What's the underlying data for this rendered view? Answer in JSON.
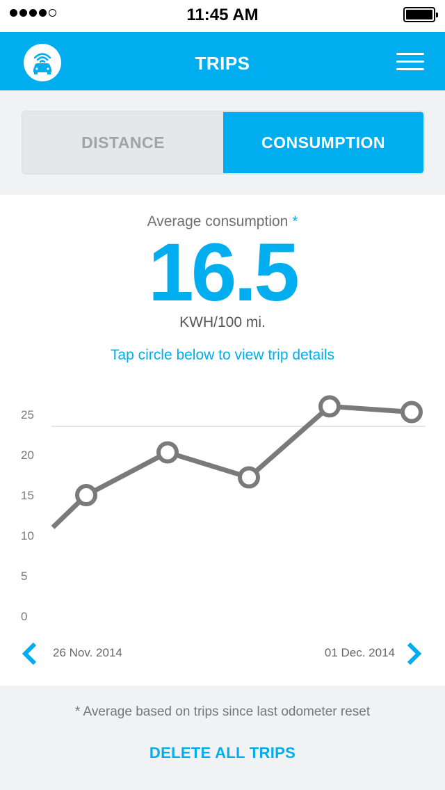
{
  "status_bar": {
    "time": "11:45 AM",
    "signal_bars": 4,
    "signal_total": 5,
    "battery_level": 1.0
  },
  "header": {
    "title": "TRIPS"
  },
  "tabs": [
    {
      "label": "DISTANCE",
      "selected": false
    },
    {
      "label": "CONSUMPTION",
      "selected": true
    }
  ],
  "summary": {
    "label": "Average consumption",
    "asterisk": "*",
    "value": "16.5",
    "unit": "KWH/100 mi.",
    "hint": "Tap circle below to view trip details"
  },
  "chart_data": {
    "type": "line",
    "y_ticks": [
      "25",
      "20",
      "15",
      "10",
      "5",
      "0"
    ],
    "ylim": [
      0,
      25
    ],
    "reference_line": 25,
    "series": [
      {
        "values": [
          11,
          15,
          20.3,
          17.2,
          26,
          25.3
        ]
      }
    ],
    "points_with_markers": [
      1,
      2,
      3,
      4,
      5
    ],
    "grid": false,
    "colors": {
      "line": "#7a7a7c",
      "marker_fill": "#ffffff",
      "reference": "#dddddd",
      "tick": "#777777"
    }
  },
  "date_range": {
    "start": "26 Nov. 2014",
    "end": "01 Dec. 2014"
  },
  "footer": {
    "note": "* Average based on trips since last odometer reset",
    "delete_label": "DELETE ALL TRIPS"
  },
  "colors": {
    "accent": "#00aeef",
    "panel": "#f0f2f3",
    "inactive_tab": "#e4e8ea"
  }
}
